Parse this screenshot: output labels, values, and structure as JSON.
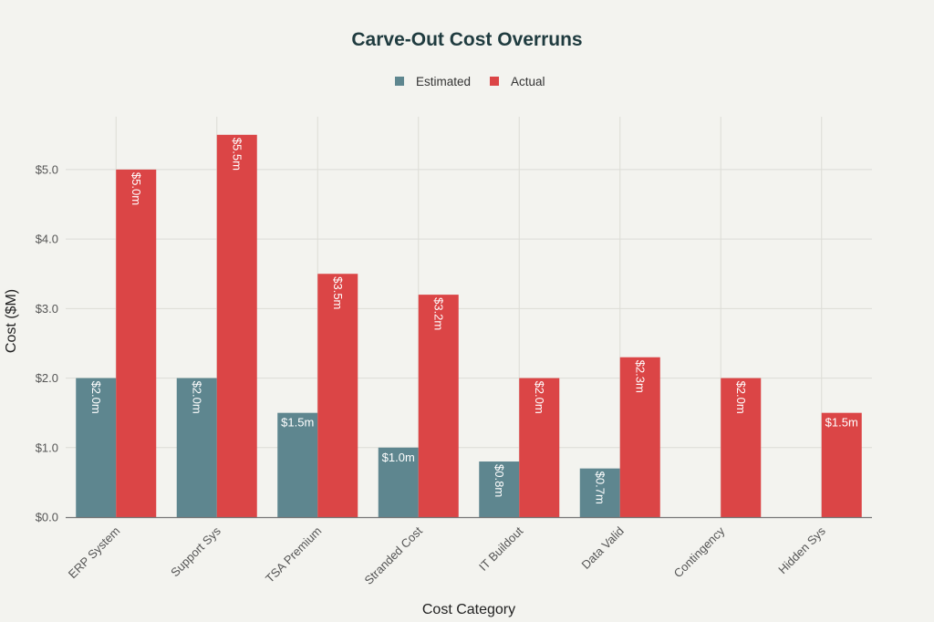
{
  "chart_data": {
    "type": "bar",
    "title": "Carve-Out Cost Overruns",
    "xlabel": "Cost Category",
    "ylabel": "Cost ($M)",
    "ylim": [
      0,
      5.76
    ],
    "yticks": [
      0,
      1,
      2,
      3,
      4,
      5
    ],
    "ytick_labels": [
      "$0.0",
      "$1.0",
      "$2.0",
      "$3.0",
      "$4.0",
      "$5.0"
    ],
    "grid": true,
    "legend_position": "top-center",
    "categories": [
      "ERP System",
      "Support Sys",
      "TSA Premium",
      "Stranded Cost",
      "IT Buildout",
      "Data Valid",
      "Contingency",
      "Hidden Sys"
    ],
    "series": [
      {
        "name": "Estimated",
        "color": "#5e868f",
        "values": [
          2.0,
          2.0,
          1.5,
          1.0,
          0.8,
          0.7,
          0,
          0
        ],
        "labels": [
          "$2.0m",
          "$2.0m",
          "$1.5m",
          "$1.0m",
          "$0.8m",
          "$0.7m",
          "",
          ""
        ]
      },
      {
        "name": "Actual",
        "color": "#db4546",
        "values": [
          5.0,
          5.5,
          3.5,
          3.2,
          2.0,
          2.3,
          2.0,
          1.5
        ],
        "labels": [
          "$5.0m",
          "$5.5m",
          "$3.5m",
          "$3.2m",
          "$2.0m",
          "$2.3m",
          "$2.0m",
          "$1.5m"
        ]
      }
    ]
  }
}
